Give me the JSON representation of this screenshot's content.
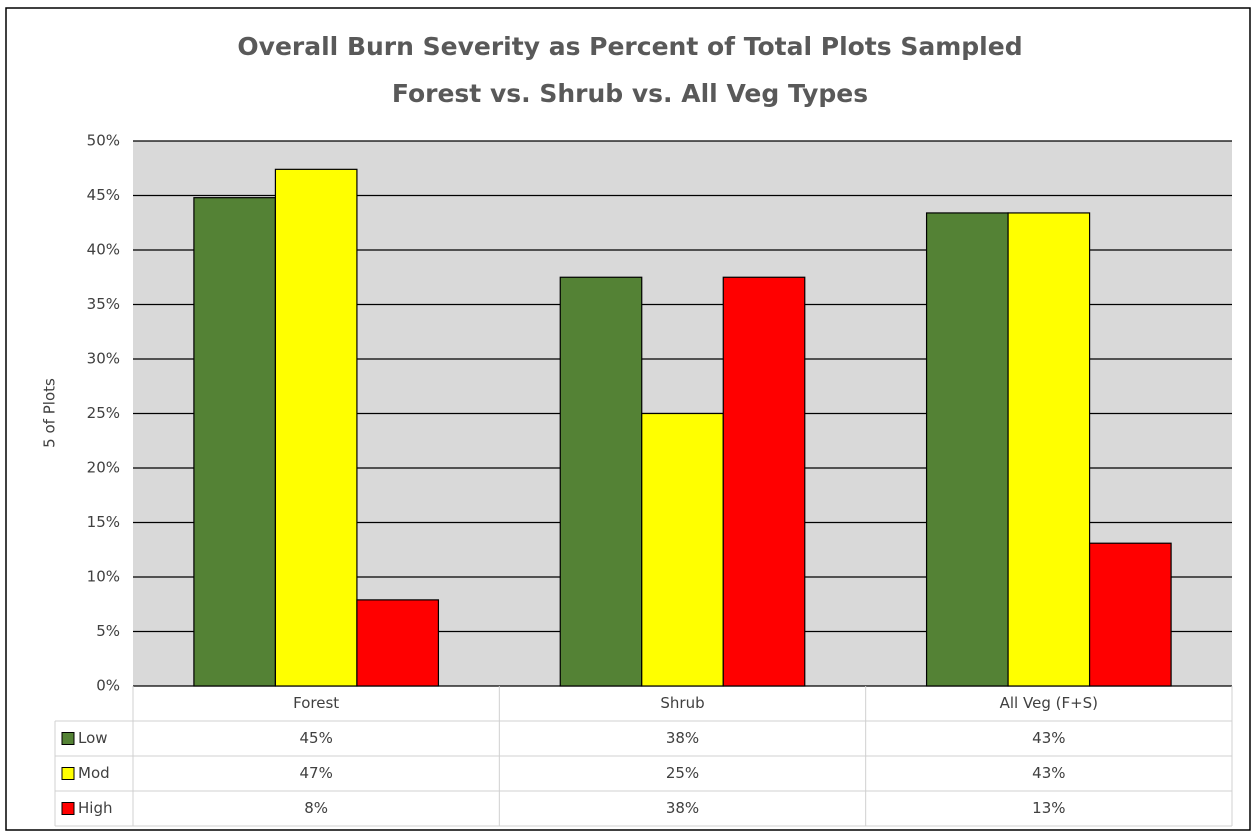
{
  "chart_data": {
    "type": "bar",
    "title": "Overall Burn Severity as Percent of Total Plots Sampled",
    "subtitle": "Forest vs. Shrub vs. All Veg Types",
    "y_label": "5 of Plots",
    "categories": [
      "Forest",
      "Shrub",
      "All Veg (F+S)"
    ],
    "series": [
      {
        "name": "Low",
        "color": "#548235",
        "values": [
          44.8,
          37.5,
          43.4
        ],
        "value_labels": [
          "45%",
          "38%",
          "43%"
        ]
      },
      {
        "name": "Mod",
        "color": "#ffff00",
        "values": [
          47.4,
          25,
          43.4
        ],
        "value_labels": [
          "47%",
          "25%",
          "43%"
        ]
      },
      {
        "name": "High",
        "color": "#ff0000",
        "values": [
          7.9,
          37.5,
          13.1
        ],
        "value_labels": [
          "8%",
          "38%",
          "13%"
        ]
      }
    ],
    "ylim": [
      0,
      50
    ],
    "yticks": [
      {
        "value": 0,
        "label": "0%"
      },
      {
        "value": 5,
        "label": "5%"
      },
      {
        "value": 10,
        "label": "10%"
      },
      {
        "value": 15,
        "label": "15%"
      },
      {
        "value": 20,
        "label": "20%"
      },
      {
        "value": 25,
        "label": "25%"
      },
      {
        "value": 30,
        "label": "30%"
      },
      {
        "value": 35,
        "label": "35%"
      },
      {
        "value": 40,
        "label": "40%"
      },
      {
        "value": 45,
        "label": "45%"
      },
      {
        "value": 50,
        "label": "50%"
      }
    ],
    "grid": true
  }
}
